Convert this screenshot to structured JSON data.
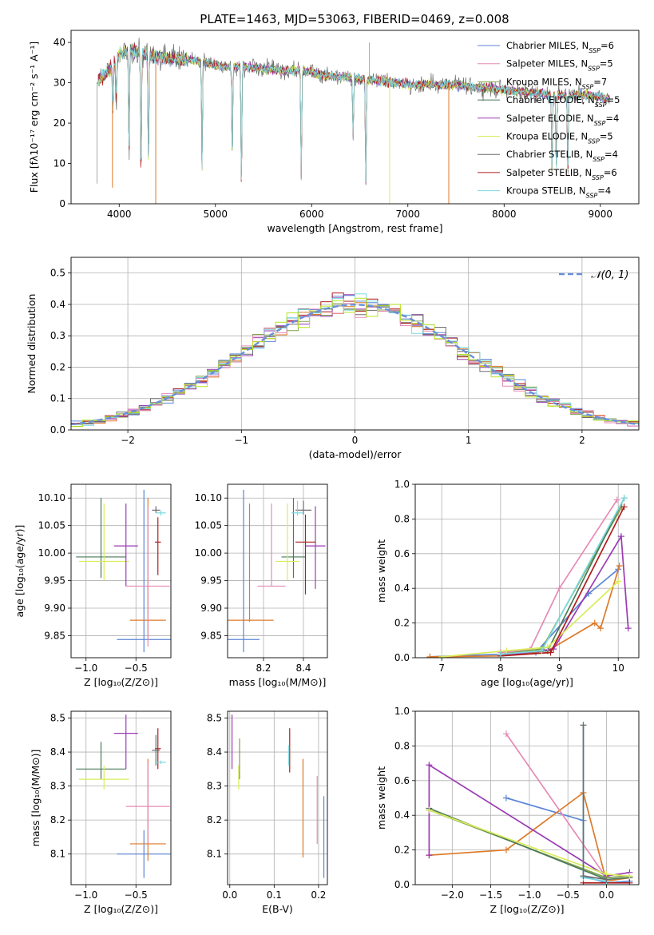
{
  "figure": {
    "title": "PLATE=1463, MJD=53063, FIBERID=0469, z=0.008"
  },
  "colors": {
    "cm": "#5b86d6",
    "sm": "#e58ab5",
    "km": "#7fa34a",
    "ce": "#4a7a5a",
    "se": "#9b3bb3",
    "ke": "#d9ec5a",
    "cs": "#6e6e6e",
    "ss": "#b01c1c",
    "ks": "#7bd9e0",
    "orange": "#dd7a2a",
    "lime": "#b5e61d",
    "gauss": "#6a8fd8",
    "grid": "#b0b0b0"
  },
  "chart_data": [
    {
      "id": "spectrum",
      "type": "line",
      "title": "PLATE=1463, MJD=53063, FIBERID=0469, z=0.008",
      "xlabel": "wavelength [Angstrom, rest frame]",
      "ylabel": "Flux [fλ10⁻¹⁷ erg cm⁻² s⁻¹ A⁻¹]",
      "xlim": [
        3500,
        9400
      ],
      "ylim": [
        0,
        43
      ],
      "xticks": [
        4000,
        5000,
        6000,
        7000,
        8000,
        9000
      ],
      "yticks": [
        0,
        10,
        20,
        30,
        40
      ],
      "grid": false,
      "legend_position": "upper-right",
      "legend": [
        {
          "key": "cm",
          "label": "Chabrier MILES, N",
          "sub": "SSP",
          "tail": "=6"
        },
        {
          "key": "sm",
          "label": "Salpeter MILES, N",
          "sub": "SSP",
          "tail": "=5"
        },
        {
          "key": "km",
          "label": "Kroupa MILES, N",
          "sub": "SSP",
          "tail": "=7"
        },
        {
          "key": "ce",
          "label": "Chabrier ELODIE, N",
          "sub": "SSP",
          "tail": "=5"
        },
        {
          "key": "se",
          "label": "Salpeter ELODIE, N",
          "sub": "SSP",
          "tail": "=4"
        },
        {
          "key": "ke",
          "label": "Kroupa ELODIE, N",
          "sub": "SSP",
          "tail": "=5"
        },
        {
          "key": "cs",
          "label": "Chabrier STELIB, N",
          "sub": "SSP",
          "tail": "=4"
        },
        {
          "key": "ss",
          "label": "Salpeter STELIB, N",
          "sub": "SSP",
          "tail": "=6"
        },
        {
          "key": "ks",
          "label": "Kroupa STELIB, N",
          "sub": "SSP",
          "tail": "=4"
        }
      ],
      "continuum": [
        [
          3760,
          30
        ],
        [
          3900,
          33
        ],
        [
          4000,
          37
        ],
        [
          4100,
          38
        ],
        [
          4200,
          37.5
        ],
        [
          4300,
          37
        ],
        [
          4500,
          36
        ],
        [
          4700,
          36
        ],
        [
          4900,
          35
        ],
        [
          5100,
          34
        ],
        [
          5300,
          34
        ],
        [
          5500,
          33.5
        ],
        [
          5700,
          33
        ],
        [
          5900,
          33
        ],
        [
          6100,
          32
        ],
        [
          6300,
          31.5
        ],
        [
          6500,
          31
        ],
        [
          6700,
          30.5
        ],
        [
          6900,
          30
        ],
        [
          7100,
          29.5
        ],
        [
          7300,
          29.5
        ],
        [
          7500,
          29.5
        ],
        [
          7700,
          29
        ],
        [
          7900,
          28.5
        ],
        [
          8100,
          28
        ],
        [
          8300,
          27.5
        ],
        [
          8500,
          27
        ],
        [
          8700,
          27
        ],
        [
          8900,
          27
        ],
        [
          9100,
          26
        ]
      ],
      "absorption": [
        [
          3934,
          22
        ],
        [
          3969,
          25
        ],
        [
          4102,
          12
        ],
        [
          4227,
          6
        ],
        [
          4304,
          10
        ],
        [
          4861,
          8
        ],
        [
          5175,
          10
        ],
        [
          5270,
          4
        ],
        [
          5892,
          6
        ],
        [
          6431,
          16
        ],
        [
          6563,
          5
        ],
        [
          8498,
          7
        ],
        [
          8542,
          8
        ],
        [
          8662,
          7
        ]
      ],
      "vertical_spikes": [
        [
          3770,
          5,
          "#aaaaaa"
        ],
        [
          3930,
          4,
          "orange"
        ],
        [
          4380,
          0,
          "orange"
        ],
        [
          6810,
          0,
          "ke"
        ],
        [
          7425,
          0,
          "orange"
        ],
        [
          6600,
          40,
          "#aaaaaa"
        ]
      ]
    },
    {
      "id": "residuals",
      "type": "line",
      "xlabel": "(data-model)/error",
      "ylabel": "Normed distribution",
      "xlim": [
        -2.5,
        2.5
      ],
      "ylim": [
        0,
        0.55
      ],
      "xticks": [
        -2,
        -1,
        0,
        1,
        2
      ],
      "yticks": [
        0,
        0.1,
        0.2,
        0.3,
        0.4,
        0.5
      ],
      "grid": true,
      "legend_position": "upper-right",
      "legend_label": "𝒩(0, 1)",
      "bin_width": 0.1,
      "hist_series": [
        "cm",
        "orange",
        "km",
        "ss",
        "se",
        "cs",
        "sm",
        "ks",
        "lime"
      ]
    },
    {
      "id": "z-age",
      "type": "scatter",
      "xlabel": "Z [log₁₀(Z/Z⊙)]",
      "ylabel": "age  [log₁₀(age/yr)]",
      "xlim": [
        -1.15,
        -0.15
      ],
      "ylim": [
        9.81,
        10.125
      ],
      "xticks": [
        -1.0,
        -0.5
      ],
      "yticks": [
        9.85,
        9.9,
        9.95,
        10.0,
        10.05,
        10.1
      ],
      "grid": true,
      "points": [
        {
          "c": "cm",
          "x": -0.42,
          "y": 9.843,
          "xerr": 0.27,
          "ylo": 9.82,
          "yhi": 10.115
        },
        {
          "c": "orange",
          "x": -0.38,
          "y": 9.878,
          "xerr": 0.18,
          "ylo": 9.845,
          "yhi": 10.1
        },
        {
          "c": "sm",
          "x": -0.38,
          "y": 9.94,
          "xerr": 0.22,
          "ylo": 9.83,
          "yhi": 10.085
        },
        {
          "c": "ce",
          "x": -0.85,
          "y": 9.993,
          "xerr": 0.25,
          "ylo": 9.955,
          "yhi": 10.1
        },
        {
          "c": "ke",
          "x": -0.82,
          "y": 9.985,
          "xerr": 0.25,
          "ylo": 9.95,
          "yhi": 10.09
        },
        {
          "c": "se",
          "x": -0.6,
          "y": 10.013,
          "xerr": 0.12,
          "ylo": 9.94,
          "yhi": 10.09
        },
        {
          "c": "ss",
          "x": -0.28,
          "y": 10.02,
          "xerr": 0.03,
          "ylo": 9.96,
          "yhi": 10.065
        },
        {
          "c": "cs",
          "x": -0.3,
          "y": 10.078,
          "xerr": 0.04,
          "ylo": 10.073,
          "yhi": 10.085
        },
        {
          "c": "ks",
          "x": -0.25,
          "y": 10.073,
          "xerr": 0.05,
          "ylo": 10.068,
          "yhi": 10.078
        }
      ]
    },
    {
      "id": "mass-age",
      "type": "scatter",
      "xlabel": "mass [log₁₀(M/M⊙)]",
      "xlim": [
        8.02,
        8.52
      ],
      "ylim": [
        9.81,
        10.125
      ],
      "xticks": [
        8.2,
        8.4
      ],
      "yticks": [
        9.85,
        9.9,
        9.95,
        10.0,
        10.05,
        10.1
      ],
      "grid": true,
      "points": [
        {
          "c": "cm",
          "x": 8.1,
          "y": 9.843,
          "xerr": 0.08,
          "ylo": 9.82,
          "yhi": 10.115
        },
        {
          "c": "orange",
          "x": 8.13,
          "y": 9.878,
          "xerr": 0.12,
          "ylo": 9.875,
          "yhi": 10.09
        },
        {
          "c": "sm",
          "x": 8.24,
          "y": 9.94,
          "xerr": 0.07,
          "ylo": 9.94,
          "yhi": 10.09
        },
        {
          "c": "ce",
          "x": 8.35,
          "y": 9.993,
          "xerr": 0.06,
          "ylo": 9.955,
          "yhi": 10.1
        },
        {
          "c": "ke",
          "x": 8.32,
          "y": 9.985,
          "xerr": 0.06,
          "ylo": 9.95,
          "yhi": 10.09
        },
        {
          "c": "se",
          "x": 8.46,
          "y": 10.013,
          "xerr": 0.05,
          "ylo": 9.935,
          "yhi": 10.085
        },
        {
          "c": "ss",
          "x": 8.41,
          "y": 10.02,
          "xerr": 0.05,
          "ylo": 9.925,
          "yhi": 10.07
        },
        {
          "c": "cs",
          "x": 8.4,
          "y": 10.078,
          "xerr": 0.04,
          "ylo": 10.07,
          "yhi": 10.095
        },
        {
          "c": "ks",
          "x": 8.37,
          "y": 10.073,
          "xerr": 0.03,
          "ylo": 10.068,
          "yhi": 10.095
        }
      ]
    },
    {
      "id": "age-weight",
      "type": "line",
      "xlabel": "age  [log₁₀(age/yr)]",
      "ylabel": "mass weight",
      "xlim": [
        6.55,
        10.35
      ],
      "ylim": [
        0,
        1.0
      ],
      "xticks": [
        7,
        8,
        9,
        10
      ],
      "yticks": [
        0.0,
        0.2,
        0.4,
        0.6,
        0.8,
        1.0
      ],
      "grid": true,
      "series": [
        {
          "c": "cm",
          "points": [
            [
              6.8,
              0.005
            ],
            [
              8.0,
              0.02
            ],
            [
              8.6,
              0.03
            ],
            [
              9.5,
              0.37
            ],
            [
              10.0,
              0.51
            ]
          ]
        },
        {
          "c": "orange",
          "points": [
            [
              6.8,
              0.005
            ],
            [
              8.0,
              0.01
            ],
            [
              8.8,
              0.04
            ],
            [
              9.6,
              0.2
            ],
            [
              9.7,
              0.17
            ],
            [
              10.02,
              0.53
            ]
          ]
        },
        {
          "c": "sm",
          "points": [
            [
              8.0,
              0.03
            ],
            [
              8.5,
              0.045
            ],
            [
              9.0,
              0.4
            ],
            [
              9.98,
              0.91
            ]
          ]
        },
        {
          "c": "km",
          "points": [
            [
              8.0,
              0.02
            ],
            [
              8.7,
              0.05
            ],
            [
              10.06,
              0.87
            ]
          ]
        },
        {
          "c": "ce",
          "points": [
            [
              8.0,
              0.02
            ],
            [
              8.8,
              0.04
            ],
            [
              10.1,
              0.92
            ]
          ]
        },
        {
          "c": "se",
          "points": [
            [
              8.0,
              0.01
            ],
            [
              8.9,
              0.05
            ],
            [
              10.05,
              0.7
            ],
            [
              10.17,
              0.17
            ]
          ]
        },
        {
          "c": "ke",
          "points": [
            [
              7.0,
              0.005
            ],
            [
              8.1,
              0.04
            ],
            [
              8.8,
              0.06
            ],
            [
              10.0,
              0.44
            ]
          ]
        },
        {
          "c": "ss",
          "points": [
            [
              8.0,
              0.01
            ],
            [
              8.85,
              0.03
            ],
            [
              10.1,
              0.87
            ]
          ]
        },
        {
          "c": "ks",
          "points": [
            [
              8.0,
              0.02
            ],
            [
              8.7,
              0.04
            ],
            [
              10.1,
              0.92
            ]
          ]
        }
      ]
    },
    {
      "id": "z-mass",
      "type": "scatter",
      "xlabel": "Z [log₁₀(Z/Z⊙)]",
      "ylabel": "mass [log₁₀(M/M⊙)]",
      "xlim": [
        -1.15,
        -0.15
      ],
      "ylim": [
        8.01,
        8.52
      ],
      "xticks": [
        -1.0,
        -0.5
      ],
      "yticks": [
        8.1,
        8.2,
        8.3,
        8.4,
        8.5
      ],
      "grid": true,
      "points": [
        {
          "c": "cm",
          "x": -0.42,
          "y": 8.1,
          "xerr": 0.27,
          "ylo": 8.03,
          "yhi": 8.17
        },
        {
          "c": "orange",
          "x": -0.38,
          "y": 8.13,
          "xerr": 0.18,
          "ylo": 8.08,
          "yhi": 8.38
        },
        {
          "c": "sm",
          "x": -0.38,
          "y": 8.24,
          "xerr": 0.22,
          "ylo": 8.13,
          "yhi": 8.37
        },
        {
          "c": "ce",
          "x": -0.85,
          "y": 8.35,
          "xerr": 0.25,
          "ylo": 8.32,
          "yhi": 8.43
        },
        {
          "c": "ke",
          "x": -0.82,
          "y": 8.32,
          "xerr": 0.25,
          "ylo": 8.29,
          "yhi": 8.36
        },
        {
          "c": "se",
          "x": -0.6,
          "y": 8.455,
          "xerr": 0.12,
          "ylo": 8.35,
          "yhi": 8.51
        },
        {
          "c": "ss",
          "x": -0.28,
          "y": 8.41,
          "xerr": 0.03,
          "ylo": 8.35,
          "yhi": 8.47
        },
        {
          "c": "cs",
          "x": -0.3,
          "y": 8.405,
          "xerr": 0.04,
          "ylo": 8.36,
          "yhi": 8.45
        },
        {
          "c": "ks",
          "x": -0.25,
          "y": 8.37,
          "xerr": 0.05,
          "ylo": 8.365,
          "yhi": 8.375
        }
      ]
    },
    {
      "id": "ebv-mass",
      "type": "scatter",
      "xlabel": "E(B-V)",
      "xlim": [
        -0.005,
        0.22
      ],
      "ylim": [
        8.01,
        8.52
      ],
      "xticks": [
        0.0,
        0.1,
        0.2
      ],
      "yticks": [
        8.1,
        8.2,
        8.3,
        8.4,
        8.5
      ],
      "grid": true,
      "points": [
        {
          "c": "se",
          "x": 0.005,
          "ylo": 8.35,
          "yhi": 8.51
        },
        {
          "c": "ke",
          "x": 0.02,
          "ylo": 8.29,
          "yhi": 8.36
        },
        {
          "c": "km",
          "x": 0.022,
          "ylo": 8.32,
          "yhi": 8.44
        },
        {
          "c": "ss",
          "x": 0.135,
          "ylo": 8.34,
          "yhi": 8.47
        },
        {
          "c": "ks",
          "x": 0.133,
          "ylo": 8.36,
          "yhi": 8.42
        },
        {
          "c": "orange",
          "x": 0.165,
          "ylo": 8.09,
          "yhi": 8.38
        },
        {
          "c": "sm",
          "x": 0.197,
          "ylo": 8.13,
          "yhi": 8.33
        },
        {
          "c": "cm",
          "x": 0.212,
          "ylo": 8.03,
          "yhi": 8.27
        }
      ]
    },
    {
      "id": "z-weight",
      "type": "line",
      "xlabel": "Z [log₁₀(Z/Z⊙)]",
      "ylabel": "mass weight",
      "xlim": [
        -2.48,
        0.42
      ],
      "ylim": [
        0,
        1.0
      ],
      "xticks": [
        -2.0,
        -1.5,
        -1.0,
        -0.5,
        0.0
      ],
      "yticks": [
        0.0,
        0.2,
        0.4,
        0.6,
        0.8,
        1.0
      ],
      "grid": true,
      "series": [
        {
          "c": "cm",
          "points": [
            [
              -1.3,
              0.5
            ],
            [
              -0.3,
              0.37
            ],
            [
              -0.3,
              0.05
            ],
            [
              0.0,
              0.01
            ],
            [
              0.3,
              0.02
            ]
          ]
        },
        {
          "c": "orange",
          "points": [
            [
              -2.3,
              0.17
            ],
            [
              -1.3,
              0.2
            ],
            [
              -0.3,
              0.53
            ],
            [
              0.0,
              0.02
            ],
            [
              0.3,
              0.04
            ]
          ]
        },
        {
          "c": "sm",
          "points": [
            [
              -1.3,
              0.87
            ],
            [
              0.0,
              0.04
            ],
            [
              0.3,
              0.05
            ]
          ]
        },
        {
          "c": "km",
          "points": [
            [
              -2.3,
              0.43
            ],
            [
              0.0,
              0.04
            ],
            [
              0.3,
              0.05
            ]
          ]
        },
        {
          "c": "ce",
          "points": [
            [
              -2.3,
              0.44
            ],
            [
              0.0,
              0.03
            ],
            [
              0.3,
              0.04
            ]
          ]
        },
        {
          "c": "se",
          "points": [
            [
              -2.3,
              0.17
            ],
            [
              -2.3,
              0.69
            ],
            [
              0.0,
              0.05
            ],
            [
              0.3,
              0.07
            ]
          ]
        },
        {
          "c": "ke",
          "points": [
            [
              -2.3,
              0.43
            ],
            [
              0.0,
              0.06
            ],
            [
              0.3,
              0.05
            ]
          ]
        },
        {
          "c": "ss",
          "points": [
            [
              -0.3,
              0.01
            ],
            [
              0.0,
              0.01
            ],
            [
              0.3,
              0.01
            ]
          ]
        },
        {
          "c": "ks",
          "points": [
            [
              -0.3,
              0.92
            ],
            [
              -0.3,
              0.04
            ],
            [
              0.0,
              0.02
            ]
          ]
        },
        {
          "c": "cs",
          "points": [
            [
              -0.3,
              0.92
            ],
            [
              -0.3,
              0.05
            ],
            [
              0.0,
              0.03
            ]
          ]
        }
      ]
    }
  ]
}
